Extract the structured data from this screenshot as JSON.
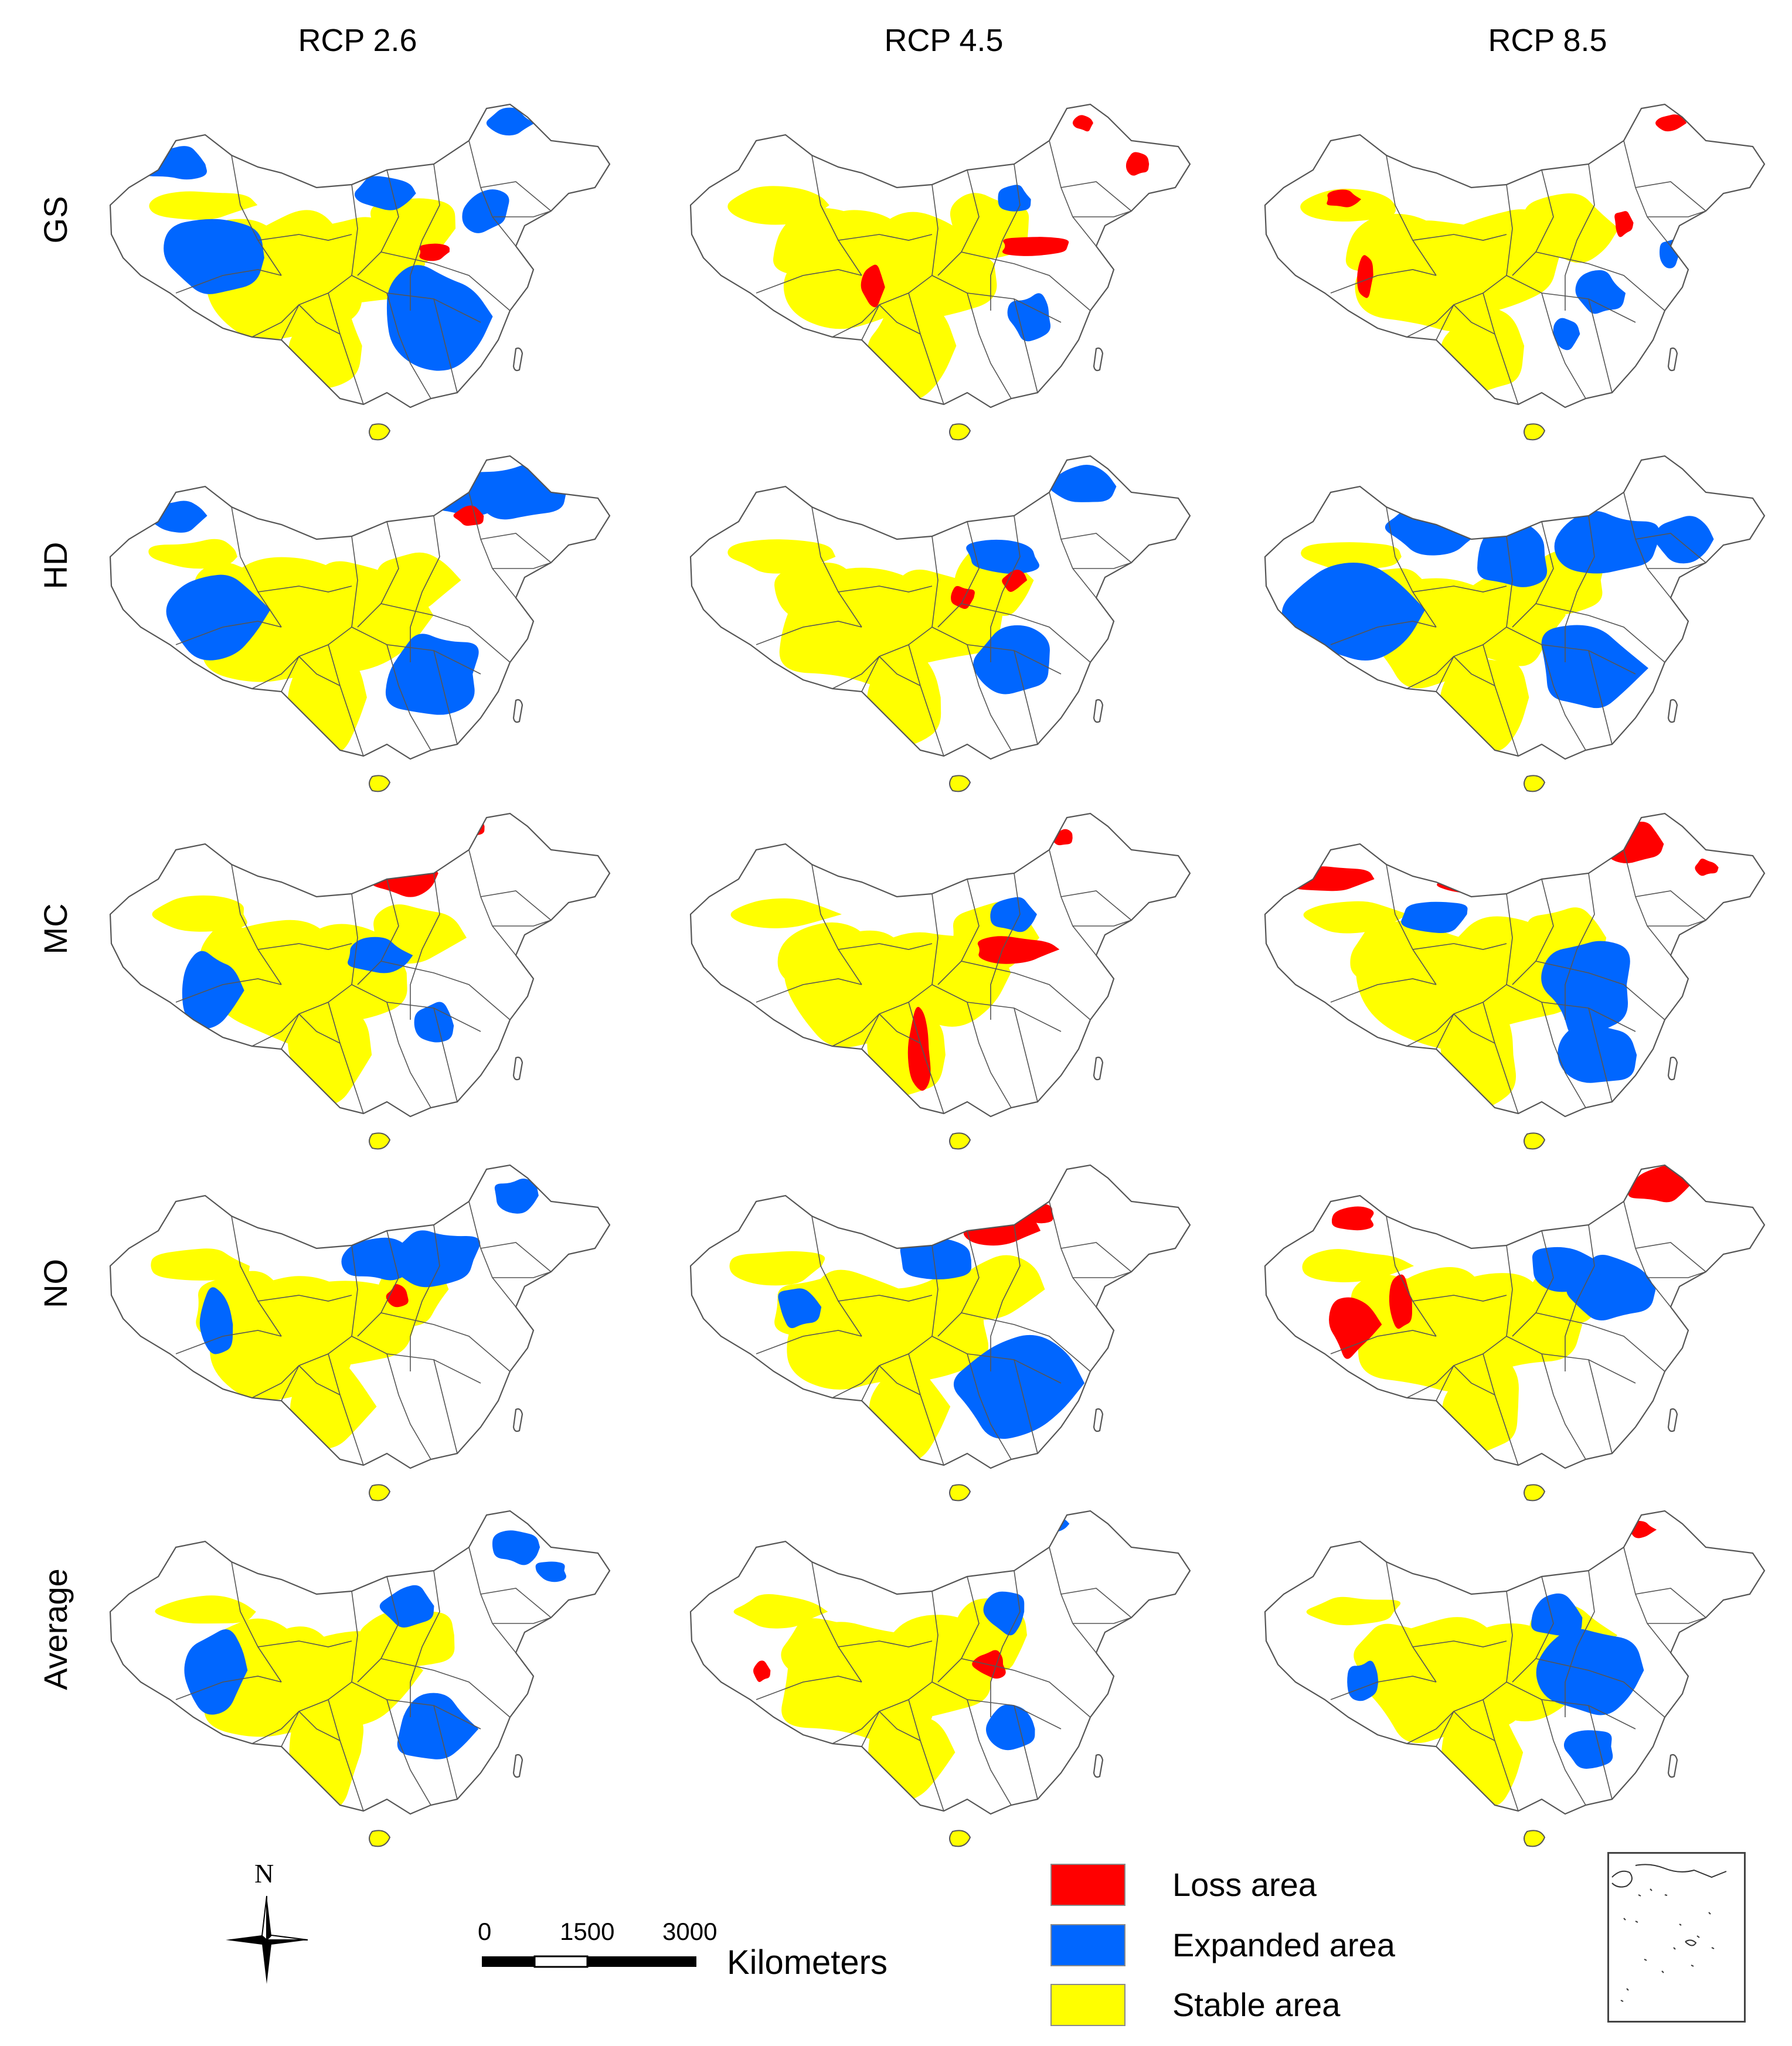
{
  "columns": [
    {
      "id": "rcp26",
      "label": "RCP 2.6"
    },
    {
      "id": "rcp45",
      "label": "RCP 4.5"
    },
    {
      "id": "rcp85",
      "label": "RCP 8.5"
    }
  ],
  "rows": [
    {
      "id": "gs",
      "label": "GS"
    },
    {
      "id": "hd",
      "label": "HD"
    },
    {
      "id": "mc",
      "label": "MC"
    },
    {
      "id": "no",
      "label": "NO"
    },
    {
      "id": "average",
      "label": "Average"
    }
  ],
  "legend": {
    "items": [
      {
        "label": "Loss area",
        "color": "#ff0000"
      },
      {
        "label": "Expanded area",
        "color": "#0066ff"
      },
      {
        "label": "Stable area",
        "color": "#ffff00"
      }
    ]
  },
  "scale_bar": {
    "ticks": [
      "0",
      "1500",
      "3000"
    ],
    "unit": "Kilometers"
  },
  "north_arrow": {
    "label": "N"
  },
  "colors": {
    "loss": "#ff0000",
    "expanded": "#0066ff",
    "stable": "#ffff00",
    "outline": "#555555"
  }
}
